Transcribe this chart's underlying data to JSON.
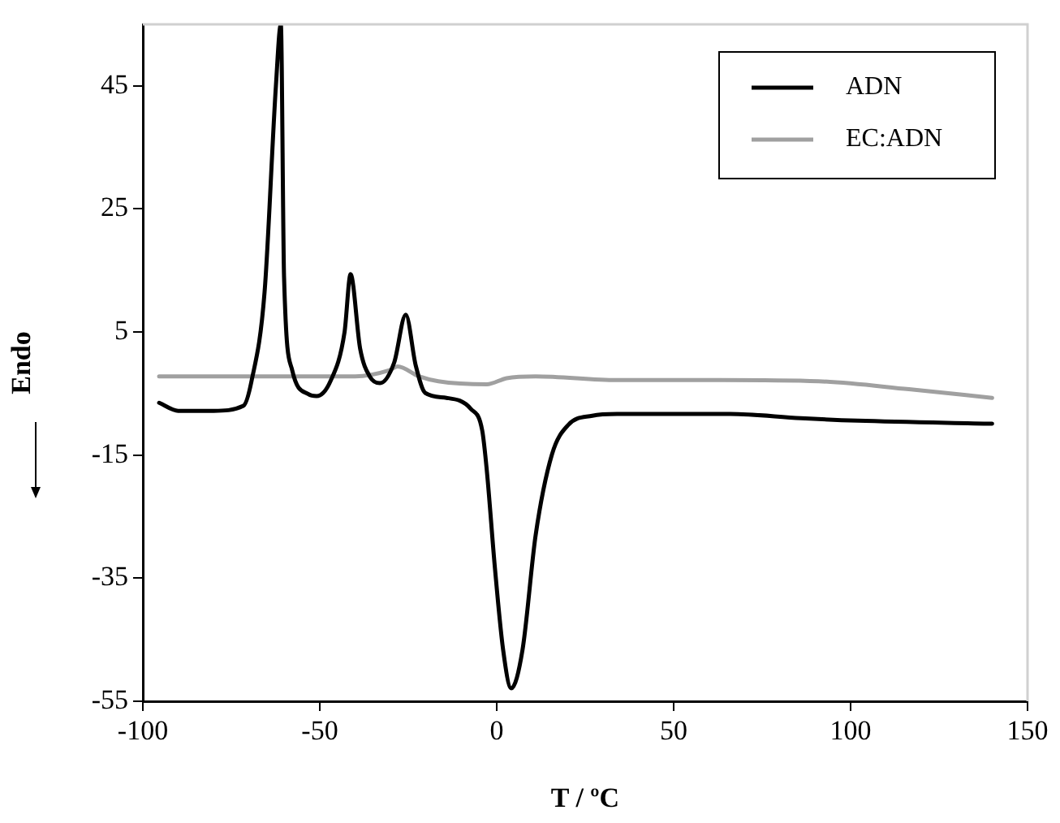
{
  "chart_data": {
    "type": "line",
    "xlabel": "T / ºC",
    "ylabel": "Endo",
    "xlim": [
      -100,
      150
    ],
    "xticks": [
      -100,
      -50,
      0,
      50,
      100,
      150
    ],
    "ylim": [
      -55,
      55
    ],
    "yticks": [
      -55,
      -35,
      -15,
      5,
      25,
      45
    ],
    "grid": false,
    "legend": "top right",
    "marker": "none",
    "line_style": "solid",
    "series": [
      {
        "name": "ADN",
        "color": "#000000",
        "x": [
          -95.4,
          -90,
          -80,
          -71.6,
          -69.3,
          -65.6,
          -62.4,
          -61,
          -60.1,
          -57.8,
          -53.2,
          -50.9,
          -47,
          -43,
          -41.3,
          -38.6,
          -35.9,
          -33,
          -29,
          -25.7,
          -22.9,
          -20.2,
          -14.2,
          -7.3,
          -4.1,
          -2.8,
          -0.5,
          1.8,
          4.1,
          7.3,
          11,
          15.6,
          20.2,
          27,
          34,
          66,
          86,
          102,
          140
        ],
        "values": [
          -6.5,
          -7.8,
          -7.8,
          -7,
          -3,
          11.5,
          45,
          55,
          14,
          -1.2,
          -5.1,
          -5.4,
          -3,
          5,
          14.4,
          2.3,
          -2.2,
          -3.3,
          0,
          7.8,
          -0.4,
          -4.9,
          -5.7,
          -7.5,
          -11,
          -17.5,
          -33.4,
          -46.6,
          -52.9,
          -46.6,
          -28,
          -14.9,
          -10.1,
          -8.6,
          -8.3,
          -8.3,
          -9,
          -9.4,
          -9.9
        ]
      },
      {
        "name": "EC:ADN",
        "color": "#a0a0a0",
        "x": [
          -95.4,
          -40,
          -30.3,
          -28,
          -22,
          -16.5,
          -2.8,
          2.8,
          11,
          34,
          63,
          91,
          116.5,
          140
        ],
        "values": [
          -2.2,
          -2.2,
          -1.2,
          -0.6,
          -2.2,
          -3,
          -3.5,
          -2.5,
          -2.2,
          -2.8,
          -2.8,
          -3,
          -4.3,
          -5.7
        ]
      }
    ]
  }
}
